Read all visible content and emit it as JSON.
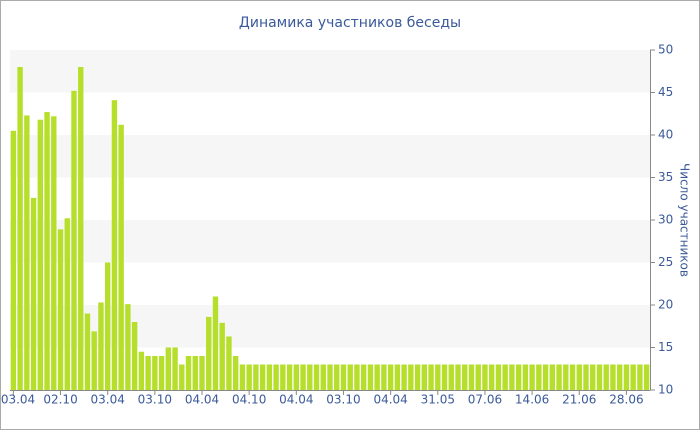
{
  "chart_data": {
    "type": "bar",
    "title": "Динамика участников беседы",
    "y_label": "Число участников",
    "color": "#b6df2b",
    "ylim": [
      10,
      50
    ],
    "yticks": [
      10,
      15,
      20,
      25,
      30,
      35,
      40,
      45,
      50
    ],
    "grid": true,
    "categories": [
      "03.04",
      null,
      null,
      null,
      null,
      null,
      null,
      "02.10",
      null,
      null,
      null,
      null,
      null,
      null,
      "03.04",
      null,
      null,
      null,
      null,
      null,
      null,
      "03.10",
      null,
      null,
      null,
      null,
      null,
      null,
      "04.04",
      null,
      null,
      null,
      null,
      null,
      null,
      "04.10",
      null,
      null,
      null,
      null,
      null,
      null,
      "04.04",
      null,
      null,
      null,
      null,
      null,
      null,
      "03.10",
      null,
      null,
      null,
      null,
      null,
      null,
      "04.04",
      null,
      null,
      null,
      null,
      null,
      null,
      "31.05",
      null,
      null,
      null,
      null,
      null,
      null,
      "07.06",
      null,
      null,
      null,
      null,
      null,
      null,
      "14.06",
      null,
      null,
      null,
      null,
      null,
      null,
      "21.06",
      null,
      null,
      null,
      null,
      null,
      null,
      "28.06",
      null,
      null,
      null
    ],
    "values": [
      40.5,
      48,
      42.3,
      32.6,
      41.8,
      42.7,
      42.2,
      28.9,
      30.2,
      45.2,
      48,
      19,
      16.9,
      20.3,
      25,
      44.1,
      41.2,
      20.1,
      18,
      14.5,
      14,
      14,
      14,
      15,
      15,
      13,
      14,
      14,
      14,
      18.6,
      21,
      17.9,
      16.3,
      14,
      13,
      13,
      13,
      13,
      13,
      13,
      13,
      13,
      13,
      13,
      13,
      13,
      13,
      13,
      13,
      13,
      13,
      13,
      13,
      13,
      13,
      13,
      13,
      13,
      13,
      13,
      13,
      13,
      13,
      13,
      13,
      13,
      13,
      13,
      13,
      13,
      13,
      13,
      13,
      13,
      13,
      13,
      13,
      13,
      13,
      13,
      13,
      13,
      13,
      13,
      13,
      13,
      13,
      13,
      13,
      13,
      13,
      13,
      13,
      13,
      13
    ]
  }
}
